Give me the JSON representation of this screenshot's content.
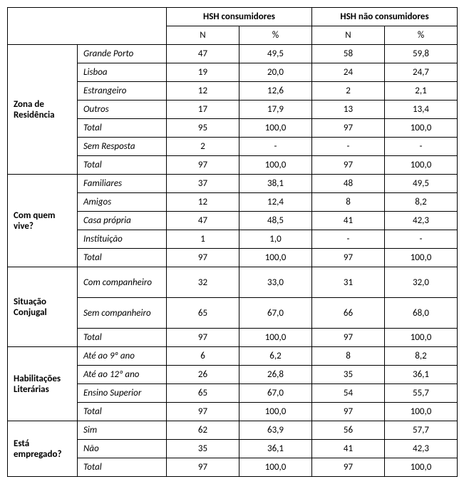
{
  "headers": {
    "group1": "HSH consumidores",
    "group2": "HSH não consumidores",
    "n": "N",
    "pct": "%"
  },
  "sections": [
    {
      "label": "Zona de Residência",
      "rows": [
        {
          "label": "Grande Porto",
          "n1": "47",
          "p1": "49,5",
          "n2": "58",
          "p2": "59,8"
        },
        {
          "label": "Lisboa",
          "n1": "19",
          "p1": "20,0",
          "n2": "24",
          "p2": "24,7"
        },
        {
          "label": "Estrangeiro",
          "n1": "12",
          "p1": "12,6",
          "n2": "2",
          "p2": "2,1"
        },
        {
          "label": "Outros",
          "n1": "17",
          "p1": "17,9",
          "n2": "13",
          "p2": "13,4"
        },
        {
          "label": "Total",
          "n1": "95",
          "p1": "100,0",
          "n2": "97",
          "p2": "100,0"
        },
        {
          "label": "Sem Resposta",
          "n1": "2",
          "p1": "-",
          "n2": "-",
          "p2": "-"
        },
        {
          "label": "Total",
          "n1": "97",
          "p1": "100,0",
          "n2": "97",
          "p2": "100,0"
        }
      ]
    },
    {
      "label": "Com quem vive?",
      "rows": [
        {
          "label": "Familiares",
          "n1": "37",
          "p1": "38,1",
          "n2": "48",
          "p2": "49,5"
        },
        {
          "label": "Amigos",
          "n1": "12",
          "p1": "12,4",
          "n2": "8",
          "p2": "8,2"
        },
        {
          "label": "Casa própria",
          "n1": "47",
          "p1": "48,5",
          "n2": "41",
          "p2": "42,3"
        },
        {
          "label": "Instituição",
          "n1": "1",
          "p1": "1,0",
          "n2": "-",
          "p2": "-"
        },
        {
          "label": "Total",
          "n1": "97",
          "p1": "100,0",
          "n2": "97",
          "p2": "100,0"
        }
      ]
    },
    {
      "label": "Situação Conjugal",
      "rows": [
        {
          "label": "Com companheiro",
          "n1": "32",
          "p1": "33,0",
          "n2": "31",
          "p2": "32,0",
          "tall": true
        },
        {
          "label": "Sem companheiro",
          "n1": "65",
          "p1": "67,0",
          "n2": "66",
          "p2": "68,0",
          "tall": true
        },
        {
          "label": "Total",
          "n1": "97",
          "p1": "100,0",
          "n2": "97",
          "p2": "100,0"
        }
      ]
    },
    {
      "label": "Habilitações Literárias",
      "rows": [
        {
          "label": "Até ao 9º ano",
          "n1": "6",
          "p1": "6,2",
          "n2": "8",
          "p2": "8,2"
        },
        {
          "label": "Até ao 12º ano",
          "n1": "26",
          "p1": "26,8",
          "n2": "35",
          "p2": "36,1"
        },
        {
          "label": "Ensino Superior",
          "n1": "65",
          "p1": "67,0",
          "n2": "54",
          "p2": "55,7"
        },
        {
          "label": "Total",
          "n1": "97",
          "p1": "100,0",
          "n2": "97",
          "p2": "100,0"
        }
      ]
    },
    {
      "label": "Está empregado?",
      "rows": [
        {
          "label": "Sim",
          "n1": "62",
          "p1": "63,9",
          "n2": "56",
          "p2": "57,7"
        },
        {
          "label": "Não",
          "n1": "35",
          "p1": "36,1",
          "n2": "41",
          "p2": "42,3"
        },
        {
          "label": "Total",
          "n1": "97",
          "p1": "100,0",
          "n2": "97",
          "p2": "100,0"
        }
      ]
    }
  ]
}
